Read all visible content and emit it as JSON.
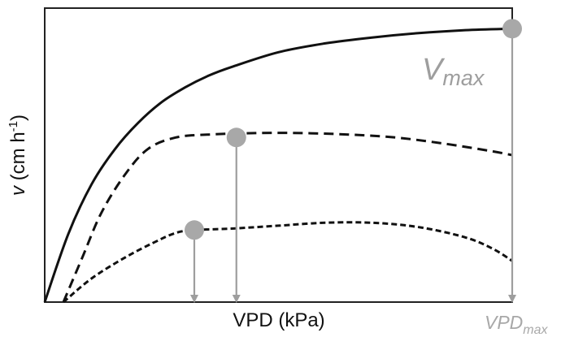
{
  "chart_data": {
    "type": "line",
    "xlabel": "VPD (kPa)",
    "ylabel_italic": "v",
    "ylabel_rest": " (cm h",
    "ylabel_sup": "-1",
    "ylabel_close": ")",
    "x_ticks": [],
    "y_ticks": [],
    "grid": false,
    "legend": "none",
    "series": [
      {
        "style": "solid",
        "points": [
          [
            0.0,
            0.0
          ],
          [
            0.05,
            0.23
          ],
          [
            0.1,
            0.4
          ],
          [
            0.15,
            0.52
          ],
          [
            0.2,
            0.61
          ],
          [
            0.25,
            0.68
          ],
          [
            0.3,
            0.73
          ],
          [
            0.35,
            0.77
          ],
          [
            0.4,
            0.8
          ],
          [
            0.5,
            0.85
          ],
          [
            0.6,
            0.88
          ],
          [
            0.7,
            0.9
          ],
          [
            0.8,
            0.915
          ],
          [
            0.9,
            0.925
          ],
          [
            1.0,
            0.93
          ]
        ],
        "marker": {
          "x": 1.0,
          "y": 0.93
        }
      },
      {
        "style": "dashed",
        "points": [
          [
            0.04,
            0.0
          ],
          [
            0.08,
            0.15
          ],
          [
            0.12,
            0.3
          ],
          [
            0.17,
            0.43
          ],
          [
            0.22,
            0.52
          ],
          [
            0.28,
            0.56
          ],
          [
            0.35,
            0.57
          ],
          [
            0.45,
            0.575
          ],
          [
            0.55,
            0.575
          ],
          [
            0.65,
            0.57
          ],
          [
            0.75,
            0.56
          ],
          [
            0.85,
            0.54
          ],
          [
            0.95,
            0.515
          ],
          [
            1.0,
            0.5
          ]
        ],
        "marker": {
          "x": 0.41,
          "y": 0.56
        }
      },
      {
        "style": "short-dashed",
        "points": [
          [
            0.04,
            0.0
          ],
          [
            0.1,
            0.08
          ],
          [
            0.17,
            0.15
          ],
          [
            0.23,
            0.2
          ],
          [
            0.28,
            0.235
          ],
          [
            0.32,
            0.245
          ],
          [
            0.4,
            0.25
          ],
          [
            0.5,
            0.26
          ],
          [
            0.6,
            0.27
          ],
          [
            0.7,
            0.27
          ],
          [
            0.8,
            0.255
          ],
          [
            0.9,
            0.22
          ],
          [
            0.96,
            0.18
          ],
          [
            1.0,
            0.14
          ]
        ],
        "marker": {
          "x": 0.32,
          "y": 0.245
        }
      }
    ],
    "annotations": {
      "vmax_main": "V",
      "vmax_sub": "max",
      "vpdmax_main": "VPD",
      "vpdmax_sub": "max"
    },
    "colors": {
      "curves": "#111111",
      "markers": "#a8a8a8",
      "drop_lines": "#9e9e9e",
      "vmax_label": "#9e9e9e"
    }
  }
}
